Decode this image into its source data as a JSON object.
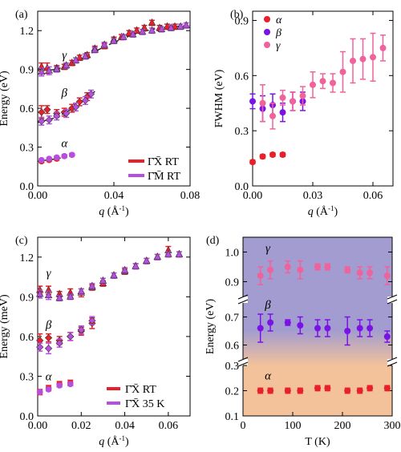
{
  "colors": {
    "red": "#e8202a",
    "violet": "#b64fe0",
    "purple": "#7a12e6",
    "pink": "#f0629b",
    "fit": "#1a1a1a",
    "bg_top": "#a29cd0",
    "bg_bottom": "#f3c29a"
  },
  "chart_data": [
    {
      "panel": "(a)",
      "type": "scatter",
      "xlabel": "q (Å⁻¹)",
      "ylabel": "Energy (eV)",
      "xlim": [
        0,
        0.08
      ],
      "ylim": [
        0,
        1.35
      ],
      "xticks": [
        "0.00",
        "0.04",
        "0.08"
      ],
      "yticks": [
        "0.0",
        "0.3",
        "0.6",
        "0.9",
        "1.2"
      ],
      "grid": false,
      "legend_placement": "bottom-right",
      "branch_labels": [
        {
          "text": "γ",
          "x": 0.014,
          "y": 0.98
        },
        {
          "text": "β",
          "x": 0.014,
          "y": 0.69
        },
        {
          "text": "α",
          "x": 0.014,
          "y": 0.3
        }
      ],
      "series": [
        {
          "name": "Γ̄X̄ RT",
          "color": "red",
          "points": [
            [
              0.002,
              0.92,
              0.03
            ],
            [
              0.005,
              0.91,
              0.04
            ],
            [
              0.01,
              0.91,
              0.02
            ],
            [
              0.014,
              0.92,
              0.02
            ],
            [
              0.018,
              0.95,
              0.02
            ],
            [
              0.022,
              0.99,
              0.02
            ],
            [
              0.026,
              1.01,
              0.02
            ],
            [
              0.03,
              1.06,
              0.02
            ],
            [
              0.035,
              1.08,
              0.02
            ],
            [
              0.04,
              1.13,
              0.02
            ],
            [
              0.044,
              1.15,
              0.02
            ],
            [
              0.048,
              1.18,
              0.02
            ],
            [
              0.052,
              1.2,
              0.02
            ],
            [
              0.056,
              1.22,
              0.02
            ],
            [
              0.06,
              1.26,
              0.02
            ],
            [
              0.064,
              1.22,
              0.02
            ],
            [
              0.068,
              1.23,
              0.02
            ],
            [
              0.072,
              1.23,
              0.02
            ],
            [
              0.002,
              0.57,
              0.05
            ],
            [
              0.005,
              0.59,
              0.03
            ],
            [
              0.01,
              0.56,
              0.03
            ],
            [
              0.014,
              0.57,
              0.03
            ],
            [
              0.018,
              0.6,
              0.03
            ],
            [
              0.022,
              0.65,
              0.03
            ],
            [
              0.026,
              0.69,
              0.03
            ],
            [
              0.002,
              0.19,
              0.01
            ],
            [
              0.006,
              0.2,
              0.01
            ],
            [
              0.01,
              0.21,
              0.01
            ],
            [
              0.014,
              0.23,
              0.01
            ],
            [
              0.018,
              0.24,
              0.01
            ]
          ]
        },
        {
          "name": "Γ̄M̄ RT",
          "color": "violet",
          "points": [
            [
              0.002,
              0.88,
              0.03
            ],
            [
              0.006,
              0.89,
              0.03
            ],
            [
              0.01,
              0.9,
              0.02
            ],
            [
              0.015,
              0.93,
              0.02
            ],
            [
              0.02,
              0.97,
              0.02
            ],
            [
              0.025,
              1.0,
              0.02
            ],
            [
              0.03,
              1.05,
              0.02
            ],
            [
              0.035,
              1.09,
              0.02
            ],
            [
              0.04,
              1.12,
              0.02
            ],
            [
              0.045,
              1.15,
              0.02
            ],
            [
              0.05,
              1.17,
              0.02
            ],
            [
              0.055,
              1.19,
              0.02
            ],
            [
              0.06,
              1.2,
              0.02
            ],
            [
              0.065,
              1.21,
              0.02
            ],
            [
              0.07,
              1.22,
              0.02
            ],
            [
              0.075,
              1.23,
              0.02
            ],
            [
              0.078,
              1.24,
              0.02
            ],
            [
              0.002,
              0.5,
              0.03
            ],
            [
              0.006,
              0.51,
              0.03
            ],
            [
              0.01,
              0.54,
              0.03
            ],
            [
              0.015,
              0.56,
              0.03
            ],
            [
              0.02,
              0.61,
              0.03
            ],
            [
              0.025,
              0.66,
              0.03
            ],
            [
              0.028,
              0.71,
              0.03
            ],
            [
              0.002,
              0.2,
              0.01
            ],
            [
              0.006,
              0.21,
              0.01
            ],
            [
              0.01,
              0.22,
              0.01
            ],
            [
              0.014,
              0.23,
              0.01
            ],
            [
              0.018,
              0.24,
              0.01
            ]
          ]
        }
      ]
    },
    {
      "panel": "(b)",
      "type": "scatter",
      "xlabel": "q (Å⁻¹)",
      "ylabel": "FWHM (eV)",
      "xlim": [
        0,
        0.07
      ],
      "ylim": [
        0,
        0.95
      ],
      "xticks": [
        "0.00",
        "0.03",
        "0.06"
      ],
      "yticks": [
        "0.0",
        "0.3",
        "0.6",
        "0.9"
      ],
      "grid": false,
      "legend_placement": "top-left",
      "series": [
        {
          "name": "α",
          "color": "red",
          "points": [
            [
              0.0,
              0.13,
              0.01
            ],
            [
              0.005,
              0.16,
              0.01
            ],
            [
              0.01,
              0.17,
              0.01
            ],
            [
              0.015,
              0.17,
              0.01
            ]
          ]
        },
        {
          "name": "β",
          "color": "purple",
          "points": [
            [
              0.0,
              0.46,
              0.04
            ],
            [
              0.005,
              0.42,
              0.07
            ],
            [
              0.01,
              0.44,
              0.06
            ],
            [
              0.015,
              0.4,
              0.05
            ],
            [
              0.02,
              0.46,
              0.05
            ],
            [
              0.025,
              0.46,
              0.05
            ]
          ]
        },
        {
          "name": "γ",
          "color": "pink",
          "points": [
            [
              0.005,
              0.45,
              0.1
            ],
            [
              0.01,
              0.38,
              0.07
            ],
            [
              0.015,
              0.48,
              0.04
            ],
            [
              0.02,
              0.46,
              0.05
            ],
            [
              0.025,
              0.49,
              0.05
            ],
            [
              0.03,
              0.55,
              0.07
            ],
            [
              0.035,
              0.57,
              0.04
            ],
            [
              0.04,
              0.56,
              0.05
            ],
            [
              0.045,
              0.62,
              0.11
            ],
            [
              0.05,
              0.68,
              0.12
            ],
            [
              0.055,
              0.69,
              0.11
            ],
            [
              0.06,
              0.7,
              0.13
            ],
            [
              0.065,
              0.75,
              0.07
            ]
          ]
        }
      ]
    },
    {
      "panel": "(c)",
      "type": "scatter",
      "xlabel": "q (Å⁻¹)",
      "ylabel": "Energy (meV)",
      "xlim": [
        0,
        0.07
      ],
      "ylim": [
        0,
        1.35
      ],
      "xticks": [
        "0.00",
        "0.02",
        "0.04",
        "0.06"
      ],
      "yticks": [
        "0.0",
        "0.3",
        "0.6",
        "0.9",
        "1.2"
      ],
      "grid": false,
      "legend_placement": "bottom-right",
      "branch_labels": [
        {
          "text": "γ",
          "x": 0.005,
          "y": 1.05
        },
        {
          "text": "β",
          "x": 0.005,
          "y": 0.66
        },
        {
          "text": "α",
          "x": 0.005,
          "y": 0.27
        }
      ],
      "series": [
        {
          "name": "Γ̄X̄ RT",
          "color": "red",
          "points": [
            [
              0.001,
              0.95,
              0.03
            ],
            [
              0.005,
              0.95,
              0.03
            ],
            [
              0.01,
              0.92,
              0.02
            ],
            [
              0.015,
              0.93,
              0.03
            ],
            [
              0.02,
              0.93,
              0.03
            ],
            [
              0.025,
              0.97,
              0.02
            ],
            [
              0.03,
              1.0,
              0.02
            ],
            [
              0.035,
              1.06,
              0.02
            ],
            [
              0.04,
              1.09,
              0.02
            ],
            [
              0.045,
              1.13,
              0.02
            ],
            [
              0.05,
              1.17,
              0.02
            ],
            [
              0.055,
              1.2,
              0.02
            ],
            [
              0.06,
              1.25,
              0.03
            ],
            [
              0.065,
              1.22,
              0.02
            ],
            [
              0.001,
              0.57,
              0.05
            ],
            [
              0.005,
              0.59,
              0.03
            ],
            [
              0.01,
              0.57,
              0.03
            ],
            [
              0.015,
              0.6,
              0.03
            ],
            [
              0.02,
              0.64,
              0.03
            ],
            [
              0.025,
              0.7,
              0.04
            ],
            [
              0.001,
              0.18,
              0.02
            ],
            [
              0.005,
              0.21,
              0.02
            ],
            [
              0.01,
              0.24,
              0.02
            ],
            [
              0.015,
              0.25,
              0.02
            ]
          ]
        },
        {
          "name": "Γ̄X̄ 35 K",
          "color": "violet",
          "points": [
            [
              0.001,
              0.92,
              0.03
            ],
            [
              0.005,
              0.91,
              0.03
            ],
            [
              0.01,
              0.89,
              0.02
            ],
            [
              0.015,
              0.9,
              0.02
            ],
            [
              0.02,
              0.94,
              0.02
            ],
            [
              0.025,
              0.98,
              0.02
            ],
            [
              0.03,
              1.02,
              0.02
            ],
            [
              0.035,
              1.06,
              0.02
            ],
            [
              0.04,
              1.1,
              0.02
            ],
            [
              0.045,
              1.13,
              0.02
            ],
            [
              0.05,
              1.17,
              0.02
            ],
            [
              0.055,
              1.2,
              0.02
            ],
            [
              0.06,
              1.22,
              0.02
            ],
            [
              0.065,
              1.22,
              0.02
            ],
            [
              0.001,
              0.52,
              0.03
            ],
            [
              0.005,
              0.51,
              0.04
            ],
            [
              0.01,
              0.55,
              0.03
            ],
            [
              0.015,
              0.6,
              0.03
            ],
            [
              0.02,
              0.65,
              0.03
            ],
            [
              0.025,
              0.72,
              0.03
            ],
            [
              0.001,
              0.18,
              0.01
            ],
            [
              0.005,
              0.2,
              0.01
            ],
            [
              0.01,
              0.23,
              0.01
            ],
            [
              0.015,
              0.24,
              0.01
            ]
          ]
        }
      ]
    },
    {
      "panel": "(d)",
      "type": "scatter",
      "xlabel": "T (K)",
      "ylabel": "Energy (eV)",
      "xlim": [
        0,
        300
      ],
      "xticks": [
        "0",
        "100",
        "200",
        "300"
      ],
      "yticks": [
        "0.1",
        "0.2",
        "0.3",
        "0.6",
        "0.7",
        "0.9",
        "1.0"
      ],
      "broken_axis": [
        [
          0.1,
          0.3
        ],
        [
          0.55,
          0.75
        ],
        [
          0.85,
          1.05
        ]
      ],
      "grid": false,
      "background": "gradient",
      "branch_labels": [
        {
          "text": "γ",
          "x": 50,
          "y": 1.0
        },
        {
          "text": "β",
          "x": 50,
          "y": 0.73
        },
        {
          "text": "α",
          "x": 50,
          "y": 0.245
        }
      ],
      "series": [
        {
          "name": "α",
          "color": "red",
          "points": [
            [
              35,
              0.2,
              0.01
            ],
            [
              55,
              0.2,
              0.01
            ],
            [
              90,
              0.2,
              0.01
            ],
            [
              115,
              0.2,
              0.01
            ],
            [
              150,
              0.21,
              0.01
            ],
            [
              170,
              0.21,
              0.01
            ],
            [
              210,
              0.2,
              0.01
            ],
            [
              235,
              0.2,
              0.01
            ],
            [
              255,
              0.21,
              0.01
            ],
            [
              290,
              0.21,
              0.01
            ]
          ]
        },
        {
          "name": "β",
          "color": "purple",
          "points": [
            [
              35,
              0.66,
              0.05
            ],
            [
              55,
              0.68,
              0.03
            ],
            [
              90,
              0.68,
              0.01
            ],
            [
              115,
              0.67,
              0.03
            ],
            [
              150,
              0.66,
              0.03
            ],
            [
              170,
              0.66,
              0.03
            ],
            [
              210,
              0.65,
              0.05
            ],
            [
              235,
              0.66,
              0.03
            ],
            [
              255,
              0.66,
              0.03
            ],
            [
              290,
              0.63,
              0.02
            ]
          ]
        },
        {
          "name": "γ",
          "color": "pink",
          "points": [
            [
              35,
              0.92,
              0.03
            ],
            [
              55,
              0.94,
              0.03
            ],
            [
              90,
              0.95,
              0.02
            ],
            [
              115,
              0.94,
              0.03
            ],
            [
              150,
              0.95,
              0.01
            ],
            [
              170,
              0.95,
              0.01
            ],
            [
              210,
              0.94,
              0.01
            ],
            [
              235,
              0.93,
              0.02
            ],
            [
              255,
              0.93,
              0.02
            ],
            [
              290,
              0.92,
              0.03
            ]
          ]
        }
      ]
    }
  ]
}
